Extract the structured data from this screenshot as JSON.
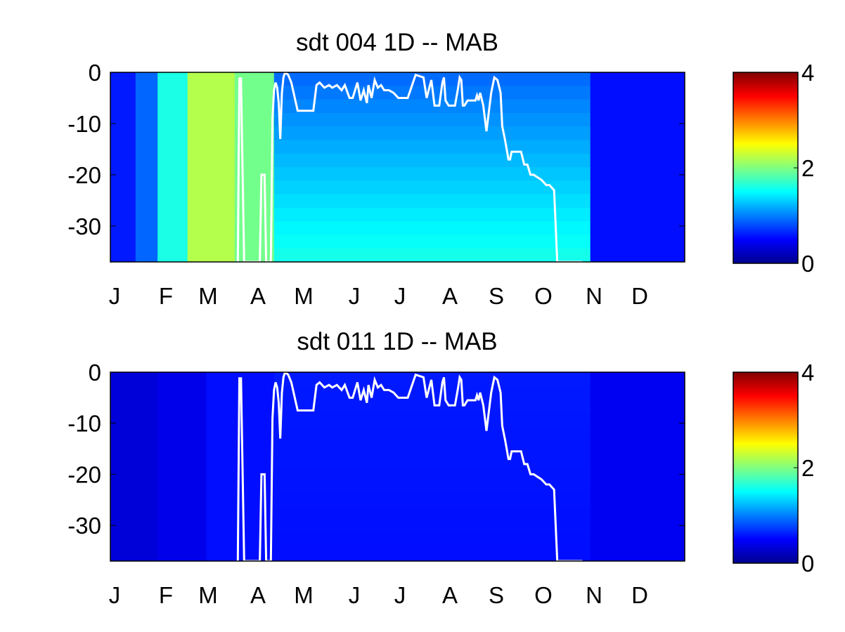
{
  "chart_data": [
    {
      "type": "heatmap",
      "title": "sdt  004 1D   -- MAB",
      "xlabel": "",
      "ylabel": "",
      "x_tick_labels": [
        "J",
        "F",
        "M",
        "A",
        "M",
        "J",
        "J",
        "A",
        "S",
        "O",
        "N",
        "D"
      ],
      "y_ticks": [
        0,
        -10,
        -20,
        -30
      ],
      "ylim": [
        -37,
        0
      ],
      "xlim": [
        1,
        366
      ],
      "grid": false,
      "colorbar": {
        "colormap": "jet",
        "range": [
          0,
          4
        ],
        "ticks": [
          0,
          2,
          4
        ]
      },
      "field_description": {
        "blocks": [
          {
            "x": [
              1,
              17
            ],
            "value": 0.6
          },
          {
            "x": [
              17,
              31
            ],
            "value": 0.9
          },
          {
            "x": [
              31,
              50
            ],
            "value": 1.6
          },
          {
            "x": [
              50,
              80
            ],
            "value": 2.2
          },
          {
            "x": [
              80,
              105
            ],
            "value": 1.95
          }
        ],
        "gradient_region": {
          "x": [
            105,
            306
          ],
          "surface_value": 0.9,
          "bottom_value": 1.6
        },
        "after": {
          "x": [
            306,
            366
          ],
          "value": 0.55
        }
      },
      "line": {
        "name": "",
        "color": "#ffffff",
        "x": [
          82,
          83,
          84,
          86,
          87,
          96,
          97,
          99,
          100,
          103,
          104,
          105,
          106,
          107,
          108,
          109,
          110,
          111,
          112,
          114,
          116,
          120,
          126,
          130,
          132,
          134,
          137,
          140,
          142,
          145,
          148,
          150,
          153,
          155,
          158,
          160,
          162,
          164,
          165,
          167,
          169,
          171,
          173,
          175,
          177,
          178,
          181,
          184,
          186,
          190,
          195,
          200,
          202,
          205,
          207,
          210,
          212,
          213,
          214,
          216,
          218,
          220,
          222,
          223,
          224,
          225,
          226,
          228,
          229,
          231,
          233,
          234,
          235,
          236,
          238,
          240,
          243,
          245,
          247,
          249,
          250,
          252,
          254,
          255,
          256,
          258,
          260,
          262,
          264,
          266,
          268,
          270,
          275,
          278,
          280,
          283,
          285,
          290,
          295,
          296,
          297,
          298,
          299,
          300,
          301,
          301
        ],
        "y": [
          -37,
          -1.2,
          -1.2,
          -37,
          -37,
          -37,
          -20,
          -20,
          -37,
          -37,
          -9,
          -3.5,
          -2,
          -3,
          -6,
          -13,
          -4,
          -1,
          0,
          -0.5,
          -2,
          -7.5,
          -7.5,
          -7.5,
          -2.5,
          -2,
          -3,
          -2.5,
          -3,
          -2.5,
          -3.5,
          -2.5,
          -5,
          -5,
          -2,
          -5.5,
          -3.5,
          -6,
          -2.5,
          -5,
          -1.5,
          -3,
          -2.5,
          -3.5,
          -3.5,
          -3.5,
          -4,
          -5,
          -5,
          -5,
          -0.5,
          -1,
          -5,
          -1.5,
          -6.5,
          -6.5,
          -2,
          -1,
          -5.5,
          -6.5,
          -6.5,
          -6.5,
          -3,
          -1,
          -1.5,
          -6.5,
          -6.5,
          -5.5,
          -5.5,
          -5.5,
          -5.5,
          -4.5,
          -5.5,
          -4,
          -6.5,
          -11.5,
          -4,
          -1,
          -1.5,
          -4,
          -10.5,
          -13.5,
          -17,
          -17,
          -15.5,
          -15.5,
          -15.5,
          -15.5,
          -18,
          -18,
          -20,
          -20,
          -21,
          -22,
          -22,
          -23,
          -37,
          -37,
          -37,
          -37,
          -37,
          -37,
          -37,
          -37,
          -37,
          -37
        ]
      }
    },
    {
      "type": "heatmap",
      "title": "sdt  011 1D   -- MAB",
      "xlabel": "",
      "ylabel": "",
      "x_tick_labels": [
        "J",
        "F",
        "M",
        "A",
        "M",
        "J",
        "J",
        "A",
        "S",
        "O",
        "N",
        "D"
      ],
      "y_ticks": [
        0,
        -10,
        -20,
        -30
      ],
      "ylim": [
        -37,
        0
      ],
      "xlim": [
        1,
        366
      ],
      "grid": false,
      "colorbar": {
        "colormap": "jet",
        "range": [
          0,
          4
        ],
        "ticks": [
          0,
          2,
          4
        ]
      },
      "field_description": {
        "blocks": [
          {
            "x": [
              1,
              31
            ],
            "value": 0.35
          },
          {
            "x": [
              31,
              62
            ],
            "value": 0.42
          },
          {
            "x": [
              62,
              105
            ],
            "value": 0.55
          }
        ],
        "gradient_region": {
          "x": [
            105,
            306
          ],
          "surface_value": 0.6,
          "bottom_value": 0.55
        },
        "after": {
          "x": [
            306,
            366
          ],
          "value": 0.45
        }
      },
      "line": {
        "name": "",
        "color": "#ffffff",
        "x": [
          82,
          83,
          84,
          86,
          87,
          96,
          97,
          99,
          100,
          103,
          104,
          105,
          106,
          107,
          108,
          109,
          110,
          111,
          112,
          114,
          116,
          120,
          126,
          130,
          132,
          134,
          137,
          140,
          142,
          145,
          148,
          150,
          153,
          155,
          158,
          160,
          162,
          164,
          165,
          167,
          169,
          171,
          173,
          175,
          177,
          178,
          181,
          184,
          186,
          190,
          195,
          200,
          202,
          205,
          207,
          210,
          212,
          213,
          214,
          216,
          218,
          220,
          222,
          223,
          224,
          225,
          226,
          228,
          229,
          231,
          233,
          234,
          235,
          236,
          238,
          240,
          243,
          245,
          247,
          249,
          250,
          252,
          254,
          255,
          256,
          258,
          260,
          262,
          264,
          266,
          268,
          270,
          275,
          278,
          280,
          283,
          285,
          290,
          295,
          296,
          297,
          298,
          299,
          300,
          301,
          301
        ],
        "y": [
          -37,
          -1.2,
          -1.2,
          -37,
          -37,
          -37,
          -20,
          -20,
          -37,
          -37,
          -9,
          -3.5,
          -2,
          -3,
          -6,
          -13,
          -4,
          -1,
          0,
          -0.5,
          -2,
          -7.5,
          -7.5,
          -7.5,
          -2.5,
          -2,
          -3,
          -2.5,
          -3,
          -2.5,
          -3.5,
          -2.5,
          -5,
          -5,
          -2,
          -5.5,
          -3.5,
          -6,
          -2.5,
          -5,
          -1.5,
          -3,
          -2.5,
          -3.5,
          -3.5,
          -3.5,
          -4,
          -5,
          -5,
          -5,
          -0.5,
          -1,
          -5,
          -1.5,
          -6.5,
          -6.5,
          -2,
          -1,
          -5.5,
          -6.5,
          -6.5,
          -6.5,
          -3,
          -1,
          -1.5,
          -6.5,
          -6.5,
          -5.5,
          -5.5,
          -5.5,
          -5.5,
          -4.5,
          -5.5,
          -4,
          -6.5,
          -11.5,
          -4,
          -1,
          -1.5,
          -4,
          -10.5,
          -13.5,
          -17,
          -17,
          -15.5,
          -15.5,
          -15.5,
          -15.5,
          -18,
          -18,
          -20,
          -20,
          -21,
          -22,
          -22,
          -23,
          -37,
          -37,
          -37,
          -37,
          -37,
          -37,
          -37,
          -37,
          -37,
          -37
        ]
      }
    }
  ]
}
